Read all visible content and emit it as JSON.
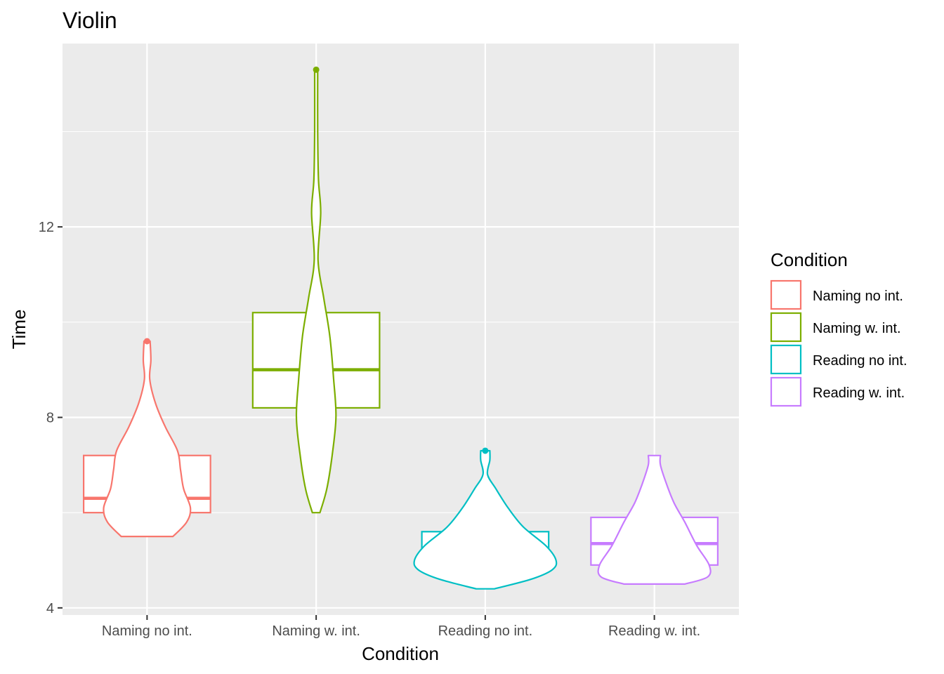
{
  "chart_data": {
    "type": "violin",
    "title": "Violin",
    "xlabel": "Condition",
    "ylabel": "Time",
    "categories": [
      "Naming no int.",
      "Naming w. int.",
      "Reading no int.",
      "Reading w. int."
    ],
    "ylim": [
      3.85,
      15.85
    ],
    "yticks": [
      4,
      8,
      12
    ],
    "grid": true,
    "legend": {
      "title": "Condition",
      "position": "right",
      "entries": [
        "Naming no int.",
        "Naming w. int.",
        "Reading no int.",
        "Reading w. int."
      ]
    },
    "colors": [
      "#F8766D",
      "#7CAE00",
      "#00BFC4",
      "#C77CFF"
    ],
    "series": [
      {
        "category": "Naming no int.",
        "box": {
          "q1": 6.0,
          "median": 6.3,
          "q3": 7.2
        },
        "min": 5.5,
        "max": 9.6,
        "outliers": [
          9.6
        ],
        "density": [
          [
            5.5,
            0.34
          ],
          [
            5.8,
            0.52
          ],
          [
            6.1,
            0.57
          ],
          [
            6.5,
            0.48
          ],
          [
            6.9,
            0.44
          ],
          [
            7.3,
            0.4
          ],
          [
            7.8,
            0.24
          ],
          [
            8.3,
            0.11
          ],
          [
            8.8,
            0.035
          ],
          [
            9.2,
            0.05
          ],
          [
            9.6,
            0.04
          ]
        ]
      },
      {
        "category": "Naming w. int.",
        "box": {
          "q1": 8.2,
          "median": 9.0,
          "q3": 10.2
        },
        "min": 6.0,
        "max": 15.3,
        "outliers": [
          15.3
        ],
        "density": [
          [
            6.0,
            0.05
          ],
          [
            6.5,
            0.14
          ],
          [
            7.2,
            0.21
          ],
          [
            8.0,
            0.26
          ],
          [
            8.8,
            0.23
          ],
          [
            9.7,
            0.18
          ],
          [
            10.5,
            0.1
          ],
          [
            11.3,
            0.025
          ],
          [
            12.3,
            0.06
          ],
          [
            13.0,
            0.03
          ],
          [
            14.0,
            0.02
          ],
          [
            15.3,
            0.02
          ]
        ]
      },
      {
        "category": "Reading no int.",
        "box": {
          "q1": 5.0,
          "median": 5.0,
          "q3": 5.6
        },
        "min": 4.4,
        "max": 7.3,
        "outliers": [
          7.3
        ],
        "density": [
          [
            4.4,
            0.12
          ],
          [
            4.6,
            0.6
          ],
          [
            4.8,
            0.88
          ],
          [
            5.0,
            0.93
          ],
          [
            5.3,
            0.8
          ],
          [
            5.7,
            0.5
          ],
          [
            6.1,
            0.3
          ],
          [
            6.5,
            0.14
          ],
          [
            6.8,
            0.03
          ],
          [
            7.1,
            0.06
          ],
          [
            7.3,
            0.06
          ]
        ]
      },
      {
        "category": "Reading w. int.",
        "box": {
          "q1": 4.9,
          "median": 5.35,
          "q3": 5.9
        },
        "min": 4.5,
        "max": 7.2,
        "outliers": [],
        "density": [
          [
            4.5,
            0.4
          ],
          [
            4.65,
            0.7
          ],
          [
            4.9,
            0.72
          ],
          [
            5.3,
            0.56
          ],
          [
            5.8,
            0.4
          ],
          [
            6.2,
            0.26
          ],
          [
            6.6,
            0.16
          ],
          [
            7.0,
            0.08
          ],
          [
            7.2,
            0.08
          ]
        ]
      }
    ]
  }
}
